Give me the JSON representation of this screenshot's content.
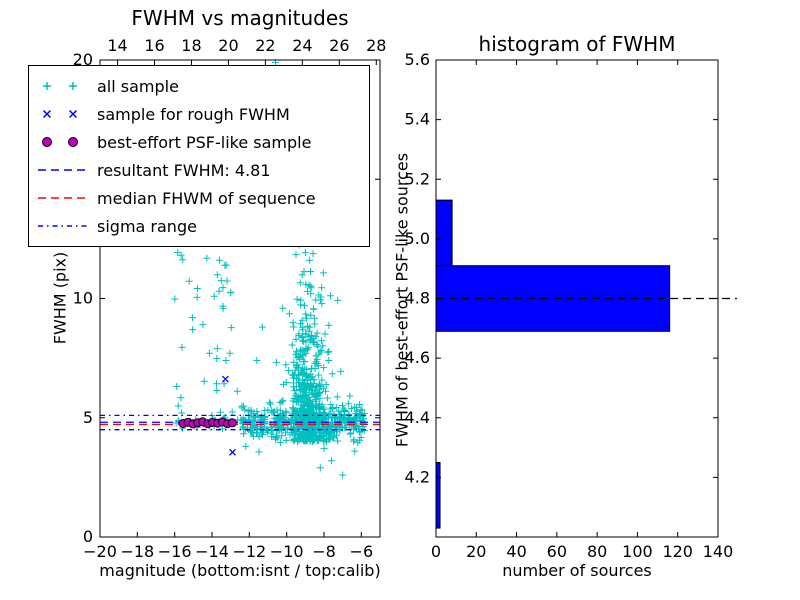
{
  "chart_data": [
    {
      "type": "scatter",
      "title": "FWHM vs magnitudes",
      "xlabel": "magnitude (bottom:isnt / top:calib)",
      "ylabel": "FWHM (pix)",
      "xlim": [
        -20,
        -5
      ],
      "ylim": [
        0,
        20
      ],
      "x_ticks": [
        -20,
        -18,
        -16,
        -14,
        -12,
        -10,
        -8,
        -6
      ],
      "y_ticks": [
        0,
        5,
        10,
        15,
        20
      ],
      "top_axis": {
        "lim": [
          13.05,
          28.2
        ],
        "ticks": [
          14,
          16,
          18,
          20,
          22,
          24,
          26,
          28
        ]
      },
      "series": [
        {
          "name": "all sample",
          "marker": "plus",
          "color": "#00bfbf",
          "seed": 7,
          "clusters": [
            {
              "count": 430,
              "x_dist": "uniform",
              "x_min": -12.4,
              "x_max": -5.8,
              "y_dist": "normal",
              "y_mean": 4.85,
              "y_sd": 0.4,
              "y_min": 2.6,
              "y_max": 7.6
            },
            {
              "count": 35,
              "x_dist": "uniform",
              "x_min": -16.1,
              "x_max": -12.4,
              "y_dist": "normal",
              "y_mean": 4.8,
              "y_sd": 0.15,
              "y_min": 4.3,
              "y_max": 5.4
            },
            {
              "count": 520,
              "x_dist": "normal",
              "x_mean": -8.8,
              "x_sd": 0.6,
              "x_min": -10.7,
              "x_max": -6.8,
              "y_dist": "exp",
              "y_offset": 4.0,
              "y_scale": 2.2,
              "y_min": 3.6,
              "y_max": 15.8
            },
            {
              "count": 40,
              "x_dist": "uniform",
              "x_min": -16.0,
              "x_max": -12.6,
              "y_dist": "uniform",
              "y_min": 5.0,
              "y_max": 12.0
            }
          ],
          "extra_points": [
            [
              -13.5,
              10.75
            ],
            [
              -13.62,
              10.3
            ],
            [
              -15.05,
              9.2
            ],
            [
              -10.6,
              19.9
            ],
            [
              -10.2,
              19.5
            ],
            [
              -10.95,
              16.1
            ],
            [
              -7.0,
              2.6
            ],
            [
              -7.6,
              3.2
            ],
            [
              -6.35,
              3.6
            ],
            [
              -8.2,
              2.9
            ],
            [
              -11.3,
              8.8
            ],
            [
              -11.6,
              7.4
            ],
            [
              -6.1,
              4.4
            ],
            [
              -5.95,
              4.9
            ]
          ]
        },
        {
          "name": "sample for rough FWHM",
          "marker": "x",
          "color": "#0000ff",
          "points": [
            [
              -13.28,
              6.62
            ],
            [
              -12.9,
              3.55
            ],
            [
              -15.3,
              4.8
            ],
            [
              -14.6,
              4.76
            ],
            [
              -13.95,
              4.8
            ],
            [
              -13.4,
              4.77
            ]
          ]
        },
        {
          "name": "best-effort PSF-like sample",
          "marker": "circle",
          "color": "#bf00bf",
          "edge_color": "#000000",
          "points": [
            [
              -15.55,
              4.76
            ],
            [
              -15.29,
              4.81
            ],
            [
              -15.02,
              4.74
            ],
            [
              -14.76,
              4.79
            ],
            [
              -14.5,
              4.83
            ],
            [
              -14.23,
              4.75
            ],
            [
              -13.97,
              4.8
            ],
            [
              -13.7,
              4.77
            ],
            [
              -13.44,
              4.82
            ],
            [
              -13.17,
              4.75
            ],
            [
              -12.91,
              4.79
            ]
          ]
        }
      ],
      "hlines": [
        {
          "label": "resultant FWHM: 4.81",
          "y": 4.81,
          "style": "dashed",
          "color": "#0000ff"
        },
        {
          "label": "median FHWM of sequence",
          "y": 4.72,
          "style": "dashed",
          "color": "#ff0000"
        },
        {
          "label": "sigma range",
          "y": 4.5,
          "style": "dashdot",
          "color": "#0000ff"
        },
        {
          "label": "sigma range",
          "y": 5.1,
          "style": "dashdot",
          "color": "#0000ff"
        }
      ],
      "legend": {
        "entries": [
          {
            "label": "all sample",
            "symbol": "plus-plus",
            "color": "#00bfbf"
          },
          {
            "label": "sample for rough FWHM",
            "symbol": "x-x",
            "color": "#0000ff"
          },
          {
            "label": "best-effort PSF-like sample",
            "symbol": "circle-circle",
            "color": "#bf00bf",
            "edge_color": "#000000"
          },
          {
            "label": "resultant FWHM: 4.81",
            "symbol": "dashed-line",
            "color": "#0000ff"
          },
          {
            "label": "median FHWM of sequence",
            "symbol": "dashed-line",
            "color": "#ff0000"
          },
          {
            "label": "sigma range",
            "symbol": "dashdot-line",
            "color": "#0000ff"
          }
        ]
      }
    },
    {
      "type": "bar",
      "orientation": "horizontal",
      "title": "histogram of FWHM",
      "xlabel": "number of sources",
      "ylabel": "FWHM of best-effort PSF-like sources",
      "xlim": [
        0,
        140
      ],
      "ylim": [
        4.0,
        5.6
      ],
      "x_ticks": [
        0,
        20,
        40,
        60,
        80,
        100,
        120,
        140
      ],
      "y_ticks": [
        4.2,
        4.4,
        4.6,
        4.8,
        5.0,
        5.2,
        5.4,
        5.6
      ],
      "bin_edges": [
        4.03,
        4.25,
        4.47,
        4.69,
        4.91,
        5.13
      ],
      "counts": [
        2,
        0,
        0,
        116,
        8
      ],
      "bar_color": "#0000ff",
      "bar_edge_color": "#000000",
      "reference_line": {
        "y": 4.8,
        "color": "#000000",
        "style": "dashed"
      }
    }
  ]
}
